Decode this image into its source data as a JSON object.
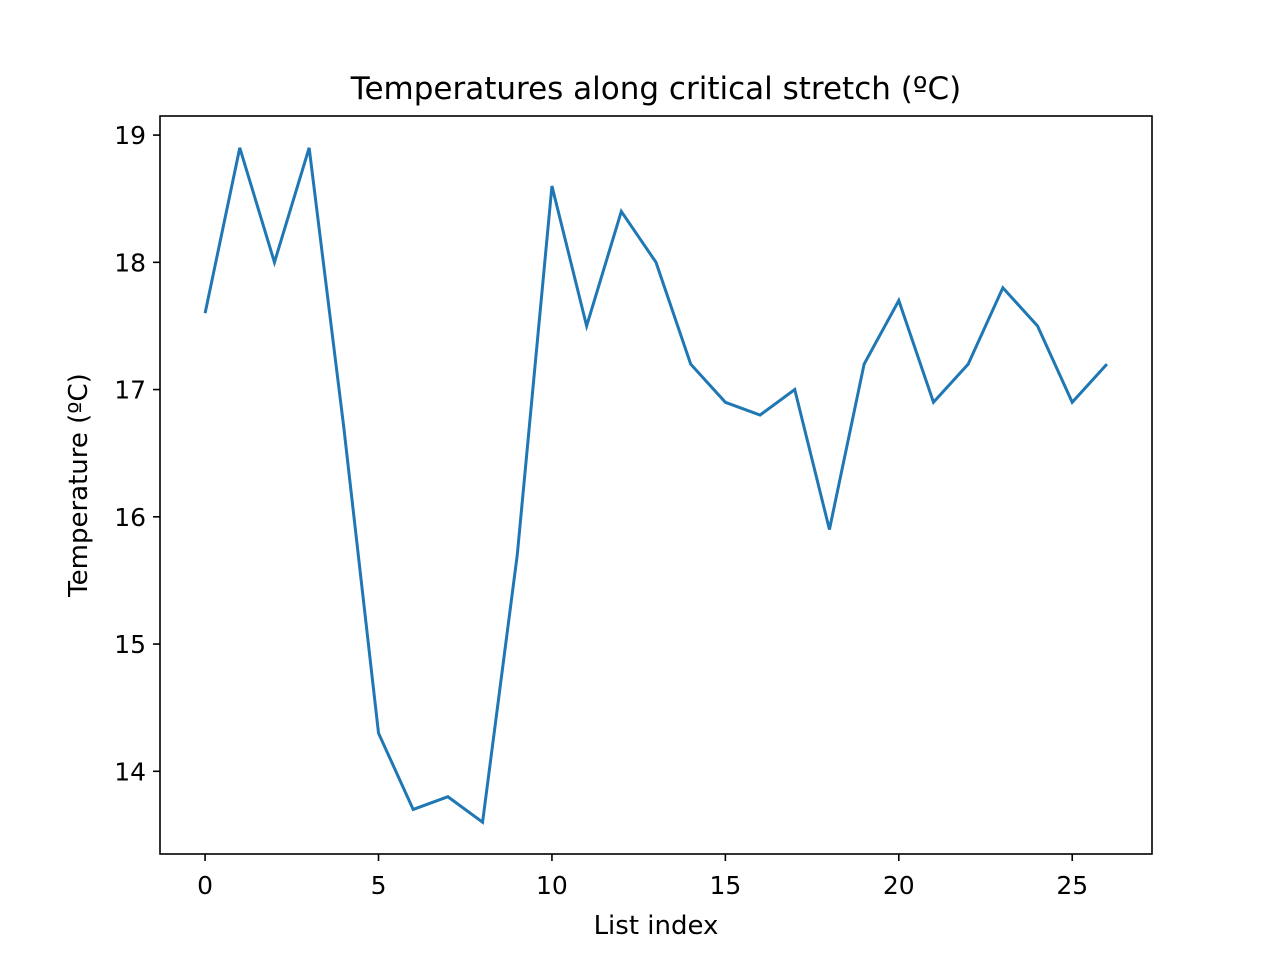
{
  "chart_data": {
    "type": "line",
    "title": "Temperatures along critical stretch (ºC)",
    "xlabel": "List index",
    "ylabel": "Temperature (ºC)",
    "xlim": [
      -1.3,
      27.3
    ],
    "ylim": [
      13.35,
      19.15
    ],
    "x_ticks": [
      0,
      5,
      10,
      15,
      20,
      25
    ],
    "y_ticks": [
      14,
      15,
      16,
      17,
      18,
      19
    ],
    "grid": false,
    "legend": "none",
    "series": [
      {
        "color": "#1f77b4",
        "x": [
          0,
          1,
          2,
          3,
          4,
          5,
          6,
          7,
          8,
          9,
          10,
          11,
          12,
          13,
          14,
          15,
          16,
          17,
          18,
          19,
          20,
          21,
          22,
          23,
          24,
          25,
          26
        ],
        "y": [
          17.6,
          18.9,
          18.0,
          18.9,
          16.7,
          14.3,
          13.7,
          13.8,
          13.6,
          15.7,
          18.6,
          17.5,
          18.4,
          18.0,
          17.2,
          16.9,
          16.8,
          17.0,
          15.9,
          17.2,
          17.7,
          16.9,
          17.2,
          17.8,
          17.5,
          16.9,
          17.2
        ]
      }
    ]
  }
}
